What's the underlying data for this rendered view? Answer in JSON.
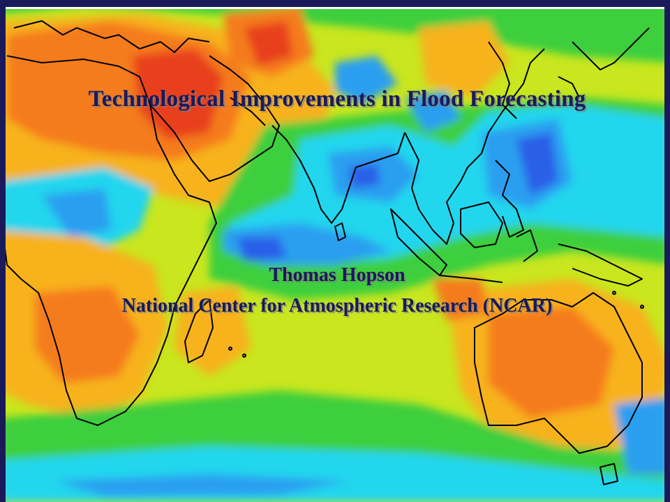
{
  "slide": {
    "title": "Technological Improvements in Flood Forecasting",
    "author": "Thomas Hopson",
    "affiliation": "National Center for Atmospheric Research (NCAR)"
  },
  "map": {
    "background_field_colors": {
      "hot": "#e8401e",
      "warm": "#f57c1e",
      "mild": "#f7b21e",
      "neutral": "#c9e61e",
      "cool": "#3ccf3c",
      "cold": "#22d6ee",
      "colder": "#2a9ff0",
      "coldest": "#2b5ee8"
    },
    "coastline_color": "#000000",
    "frame_color": "#1a1a5a"
  }
}
